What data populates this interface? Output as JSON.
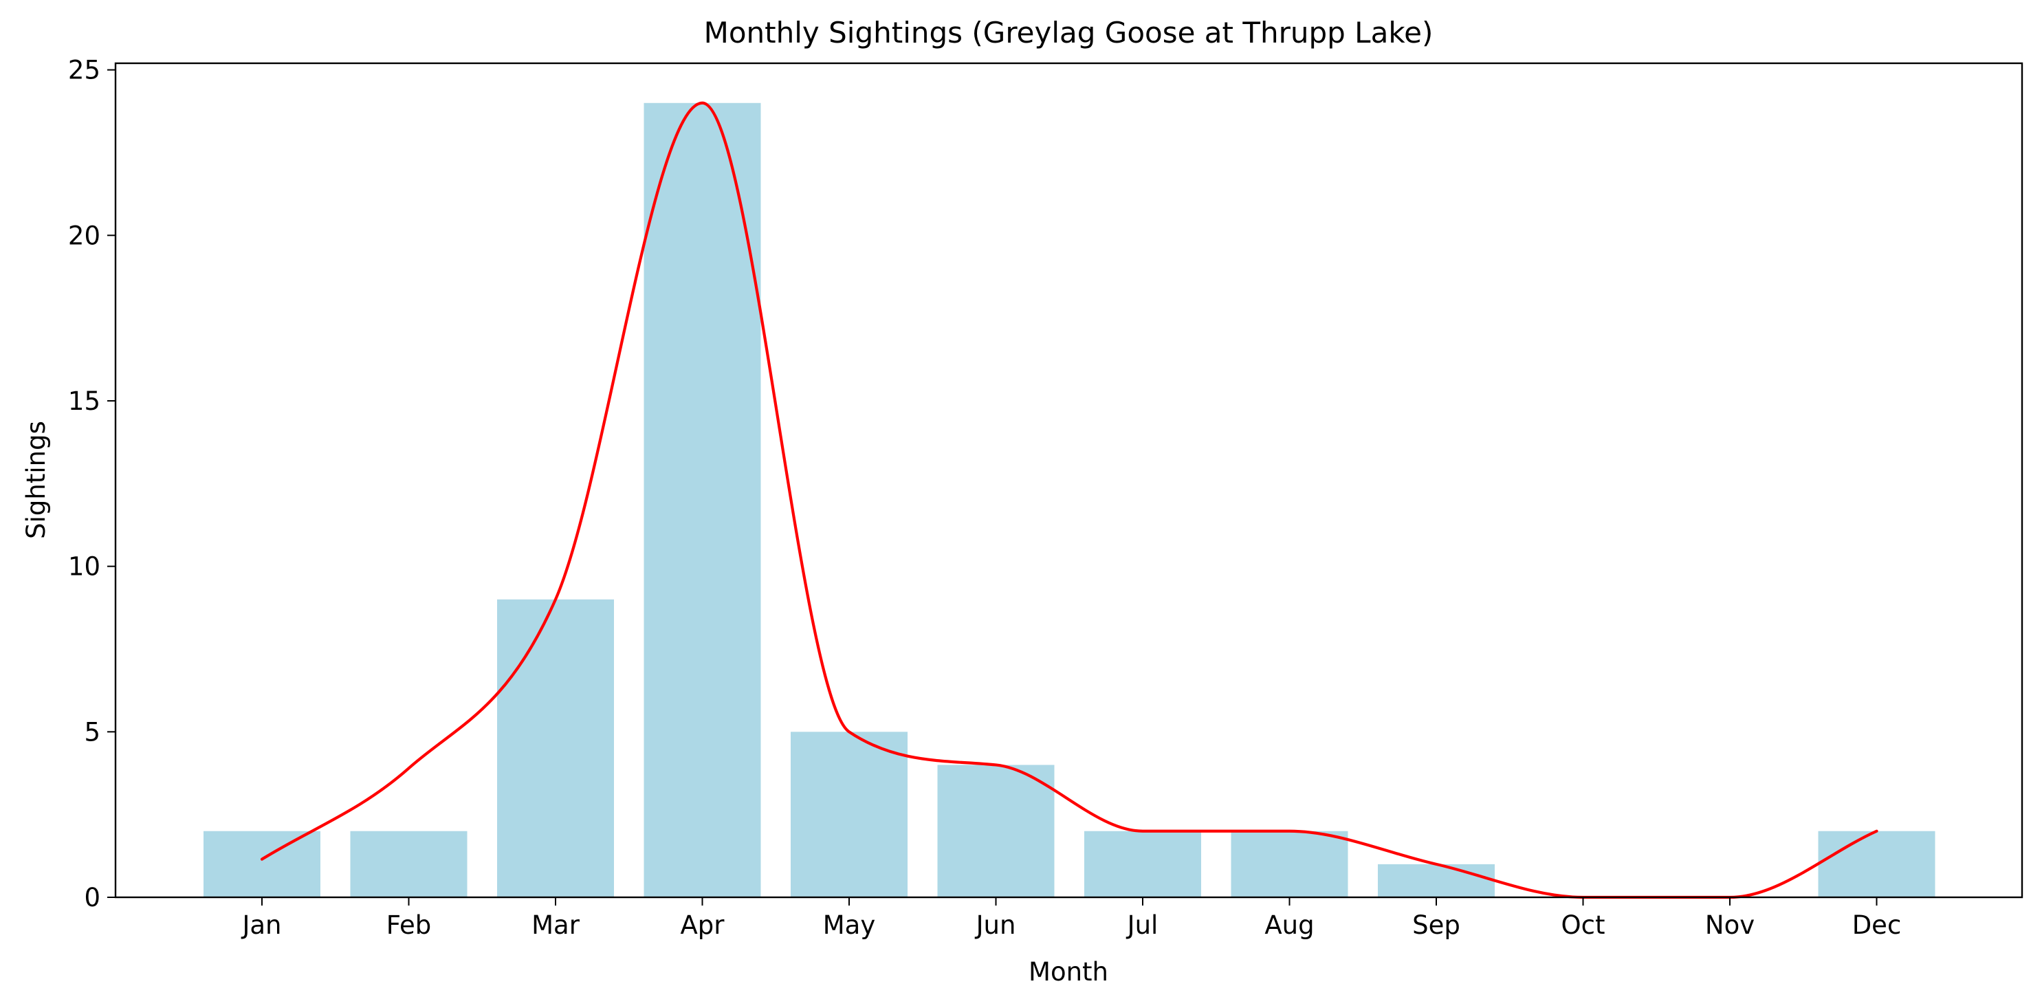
{
  "chart_data": {
    "type": "bar",
    "title": "Monthly Sightings (Greylag Goose at Thrupp Lake)",
    "xlabel": "Month",
    "ylabel": "Sightings",
    "categories": [
      "Jan",
      "Feb",
      "Mar",
      "Apr",
      "May",
      "Jun",
      "Jul",
      "Aug",
      "Sep",
      "Oct",
      "Nov",
      "Dec"
    ],
    "series": [
      {
        "values": [
          2,
          2,
          9,
          24,
          5,
          4,
          2,
          2,
          1,
          0,
          0,
          2
        ],
        "color": "#add8e6",
        "kind": "bar"
      }
    ],
    "trend_line": {
      "type": "line",
      "color": "#ff0000",
      "smooth": true,
      "points": [
        1.15,
        3.9,
        9.0,
        24.0,
        5.0,
        4.0,
        2.0,
        2.0,
        1.0,
        0.0,
        0.0,
        2.0
      ]
    },
    "ylim": [
      0,
      25.2
    ],
    "yticks": [
      0,
      5,
      10,
      15,
      20,
      25
    ],
    "grid": false,
    "legend": false
  }
}
